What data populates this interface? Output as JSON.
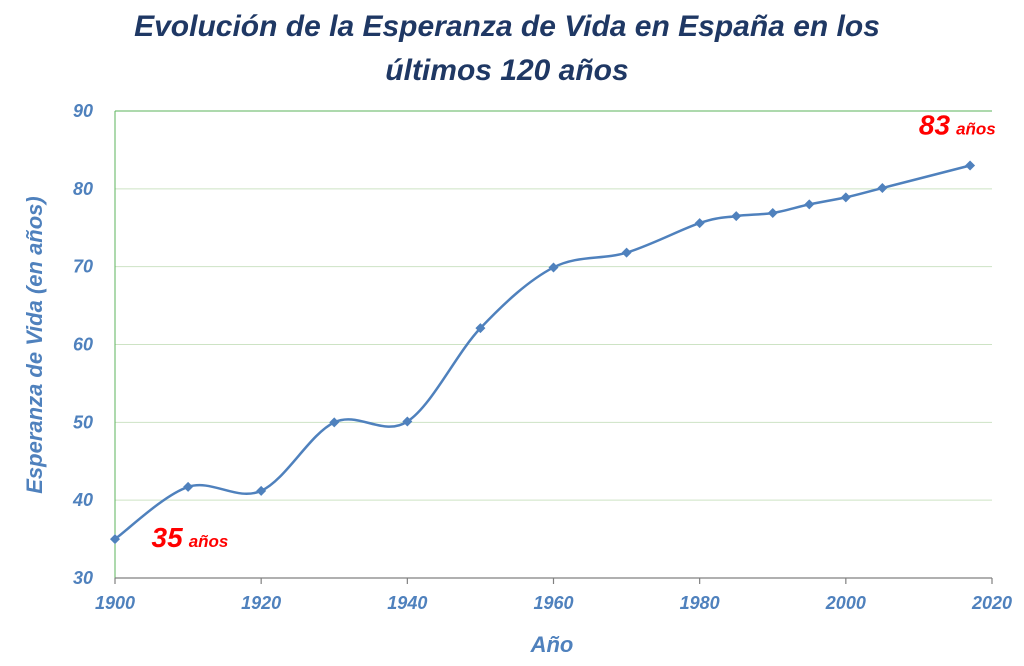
{
  "chart_data": {
    "type": "line",
    "title_line1": "Evolución de la Esperanza de Vida en España en los",
    "title_line2": "últimos 120 años",
    "xlabel": "Año",
    "ylabel": "Esperanza de Vida (en años)",
    "xlim": [
      1900,
      2020
    ],
    "ylim": [
      30,
      90
    ],
    "x_ticks": [
      1900,
      1920,
      1940,
      1960,
      1980,
      2000,
      2020
    ],
    "y_ticks": [
      30,
      40,
      50,
      60,
      70,
      80,
      90
    ],
    "grid": true,
    "smooth": true,
    "marker": "diamond",
    "series": [
      {
        "x": [
          1900,
          1910,
          1920,
          1930,
          1940,
          1950,
          1960,
          1970,
          1980,
          1985,
          1990,
          1995,
          2000,
          2005,
          2017
        ],
        "y": [
          35.0,
          41.7,
          41.2,
          50.0,
          50.1,
          62.1,
          69.9,
          71.8,
          75.6,
          76.5,
          76.9,
          78.0,
          78.9,
          80.1,
          83.0
        ]
      }
    ],
    "annotations": [
      {
        "number": "35",
        "unit": "años",
        "x": 1905,
        "y": 34
      },
      {
        "number": "83",
        "unit": "años",
        "x": 2010,
        "y": 87
      }
    ],
    "colors": {
      "line": "#4f81bd",
      "title": "#1f3864",
      "axis_text": "#4f81bd",
      "annotation": "#ff0000",
      "grid": "#d9e7d0"
    }
  }
}
